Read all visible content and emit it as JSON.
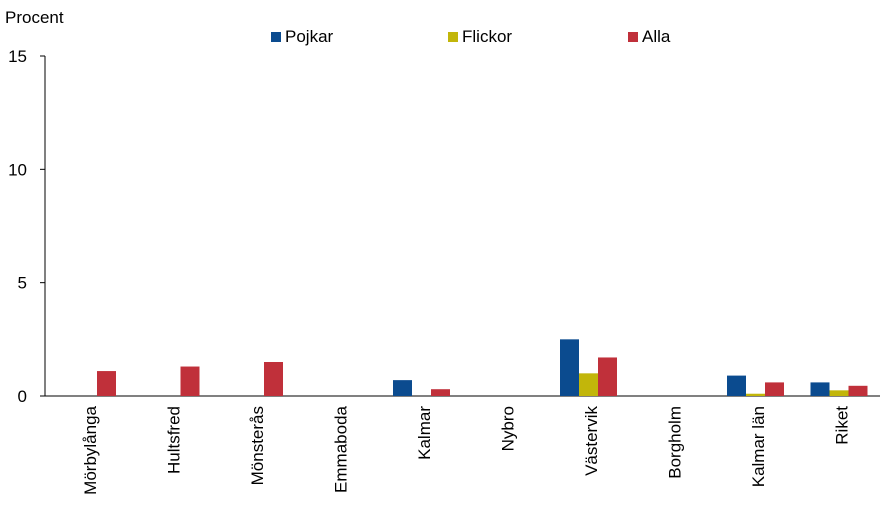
{
  "chart_data": {
    "type": "bar",
    "ylabel": "Procent",
    "xlabel": "",
    "title": "",
    "ylim": [
      0,
      15
    ],
    "yticks": [
      0,
      5,
      10,
      15
    ],
    "legend_position": "top",
    "grid": false,
    "categories": [
      "Mörbylånga",
      "Hultsfred",
      "Mönsterås",
      "Emmaboda",
      "Kalmar",
      "Nybro",
      "Västervik",
      "Borgholm",
      "Kalmar län",
      "Riket"
    ],
    "series": [
      {
        "name": "Pojkar",
        "color": "#0b4b8f",
        "values": [
          0,
          0,
          0,
          0,
          0.7,
          0,
          2.5,
          0,
          0.9,
          0.6
        ]
      },
      {
        "name": "Flickor",
        "color": "#c2b60a",
        "values": [
          0,
          0,
          0,
          0,
          0,
          0,
          1.0,
          0,
          0.1,
          0.25
        ]
      },
      {
        "name": "Alla",
        "color": "#c0303a",
        "values": [
          1.1,
          1.3,
          1.5,
          0,
          0.3,
          0,
          1.7,
          0,
          0.6,
          0.45
        ]
      }
    ]
  }
}
